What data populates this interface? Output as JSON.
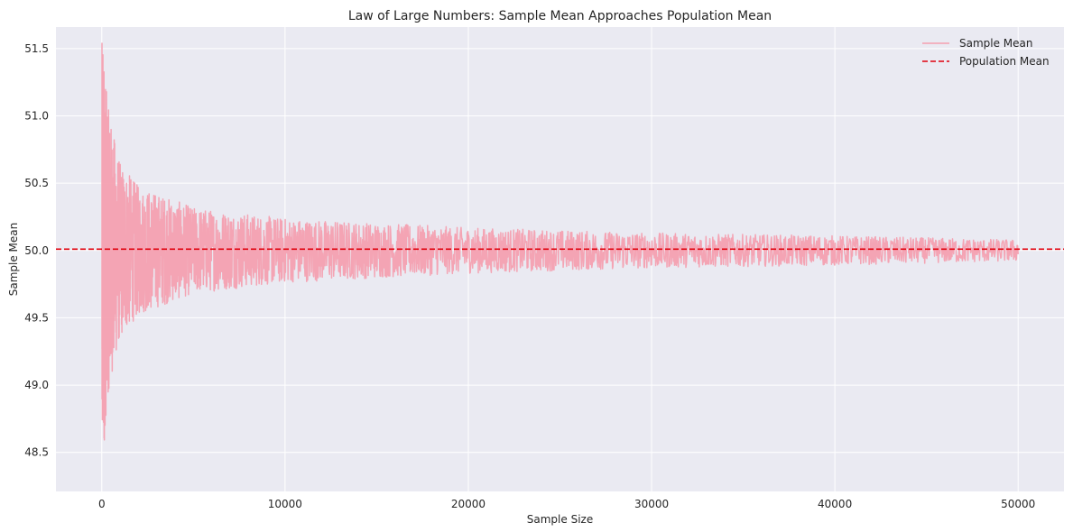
{
  "chart_data": {
    "type": "line",
    "title": "Law of Large Numbers: Sample Mean Approaches Population Mean",
    "xlabel": "Sample Size",
    "ylabel": "Sample Mean",
    "xlim": [
      -2500,
      52500
    ],
    "ylim": [
      48.21,
      51.66
    ],
    "xticks": [
      0,
      10000,
      20000,
      30000,
      40000,
      50000
    ],
    "xtick_labels": [
      "0",
      "10000",
      "20000",
      "30000",
      "40000",
      "50000"
    ],
    "yticks": [
      48.5,
      49.0,
      49.5,
      50.0,
      50.5,
      51.0,
      51.5
    ],
    "ytick_labels": [
      "48.5",
      "49.0",
      "49.5",
      "50.0",
      "50.5",
      "51.0",
      "51.5"
    ],
    "grid": true,
    "legend_position": "top-right",
    "series": [
      {
        "name": "Sample Mean",
        "color": "#f4a0b0",
        "style": "solid",
        "x_start": 10,
        "x_end": 50000,
        "center": 50.0,
        "envelope": [
          {
            "x": 10,
            "halfwidth": 1.55
          },
          {
            "x": 100,
            "halfwidth": 1.5
          },
          {
            "x": 300,
            "halfwidth": 1.1
          },
          {
            "x": 500,
            "halfwidth": 0.95
          },
          {
            "x": 1000,
            "halfwidth": 0.65
          },
          {
            "x": 2000,
            "halfwidth": 0.48
          },
          {
            "x": 5000,
            "halfwidth": 0.32
          },
          {
            "x": 10000,
            "halfwidth": 0.24
          },
          {
            "x": 20000,
            "halfwidth": 0.17
          },
          {
            "x": 30000,
            "halfwidth": 0.13
          },
          {
            "x": 40000,
            "halfwidth": 0.11
          },
          {
            "x": 50000,
            "halfwidth": 0.08
          }
        ]
      },
      {
        "name": "Population Mean",
        "color": "#e0000c",
        "style": "dashed",
        "value": 50.01
      }
    ]
  }
}
